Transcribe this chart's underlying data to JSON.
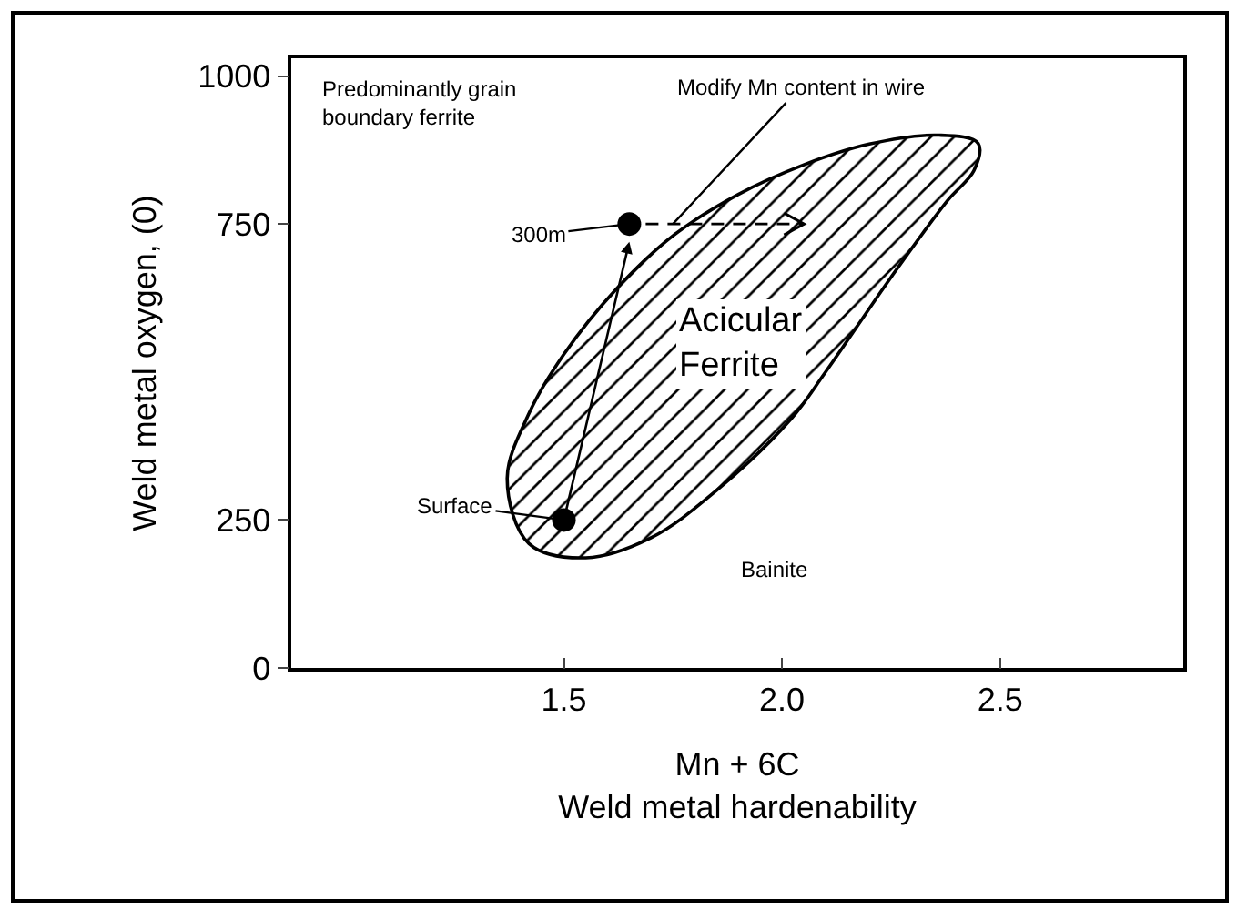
{
  "chart_data": {
    "type": "scatter",
    "xlabel": "Mn + 6C\nWeld metal hardenability",
    "ylabel": "Weld metal oxygen, (0)",
    "xlim": [
      0.875,
      2.92
    ],
    "xticks": [
      1.5,
      {
        "value": 2,
        "label": "2.0"
      },
      2.5
    ],
    "ylim": [
      0,
      1030
    ],
    "yticks": [
      0,
      250,
      750,
      1000
    ],
    "grid": false,
    "series": [
      {
        "type": "area",
        "color": "#000000",
        "x": [
          1.37,
          1.42,
          1.5,
          1.62,
          1.75,
          1.9,
          2.05,
          2.2,
          2.36,
          2.45,
          2.44,
          2.38,
          2.25,
          2.1,
          2.02,
          1.85,
          1.7,
          1.55,
          1.42,
          1.37
        ],
        "values": [
          320,
          430,
          530,
          640,
          730,
          800,
          850,
          885,
          900,
          886,
          840,
          790,
          660,
          500,
          420,
          300,
          220,
          186,
          210,
          320
        ]
      },
      {
        "type": "scatter",
        "marker": "circle",
        "color": "#000000",
        "x": [
          1.5,
          1.65
        ],
        "values": [
          250,
          750
        ]
      }
    ],
    "annotations": [
      "Predominantly grain\nboundary ferrite",
      {
        "text": "Modify Mn content in wire",
        "x": 1.75,
        "y": 750
      },
      {
        "text": "300m",
        "x": 1.65,
        "y": 750
      },
      {
        "text": "Surface",
        "x": 1.5,
        "y": 250
      },
      "Acicular\nFerrite",
      "Bainite"
    ]
  }
}
